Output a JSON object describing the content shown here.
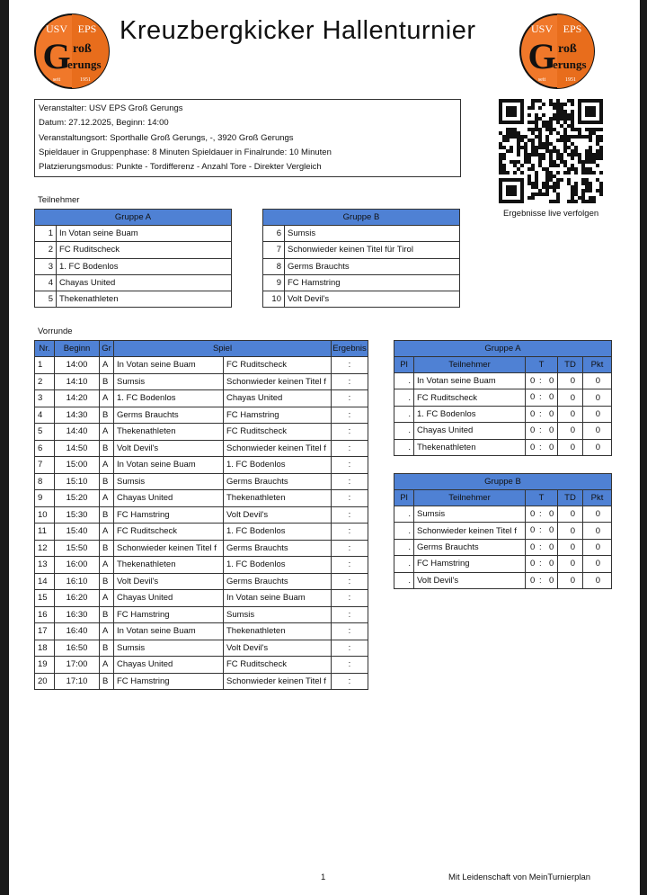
{
  "header": {
    "title": "Kreuzbergkicker Hallenturnier",
    "logo": {
      "top_left": "USV",
      "top_right": "EPS",
      "letter": "G",
      "line1": "roß",
      "line2": "erungs",
      "since": "seit",
      "year": "1951"
    }
  },
  "info": [
    "Veranstalter: USV EPS Groß Gerungs",
    "Datum: 27.12.2025, Beginn: 14:00",
    "Veranstaltungsort: Sporthalle Groß Gerungs, -, 3920 Groß Gerungs",
    "Spieldauer in Gruppenphase: 8 Minuten Spieldauer in Finalrunde: 10 Minuten",
    "Platzierungsmodus: Punkte - Tordifferenz - Anzahl Tore - Direkter Vergleich"
  ],
  "qr_caption": "Ergebnisse live verfolgen",
  "participants": {
    "label": "Teilnehmer",
    "groups": [
      {
        "name": "Gruppe A",
        "teams": [
          {
            "nr": 1,
            "name": "In Votan seine Buam"
          },
          {
            "nr": 2,
            "name": "FC Ruditscheck"
          },
          {
            "nr": 3,
            "name": "1. FC Bodenlos"
          },
          {
            "nr": 4,
            "name": "Chayas United"
          },
          {
            "nr": 5,
            "name": "Thekenathleten"
          }
        ]
      },
      {
        "name": "Gruppe B",
        "teams": [
          {
            "nr": 6,
            "name": "Sumsis"
          },
          {
            "nr": 7,
            "name": "Schonwieder keinen Titel für Tirol"
          },
          {
            "nr": 8,
            "name": "Germs Brauchts"
          },
          {
            "nr": 9,
            "name": "FC Hamstring"
          },
          {
            "nr": 10,
            "name": "Volt Devil's"
          }
        ]
      }
    ]
  },
  "schedule": {
    "label": "Vorrunde",
    "headers": [
      "Nr.",
      "Beginn",
      "Gr",
      "Spiel",
      "Ergebnis"
    ],
    "rows": [
      {
        "nr": 1,
        "time": "14:00",
        "group": "A",
        "home": "In Votan seine Buam",
        "away": "FC Ruditscheck",
        "result": ":"
      },
      {
        "nr": 2,
        "time": "14:10",
        "group": "B",
        "home": "Sumsis",
        "away": "Schonwieder keinen Titel f",
        "result": ":"
      },
      {
        "nr": 3,
        "time": "14:20",
        "group": "A",
        "home": "1. FC Bodenlos",
        "away": "Chayas United",
        "result": ":"
      },
      {
        "nr": 4,
        "time": "14:30",
        "group": "B",
        "home": "Germs Brauchts",
        "away": "FC Hamstring",
        "result": ":"
      },
      {
        "nr": 5,
        "time": "14:40",
        "group": "A",
        "home": "Thekenathleten",
        "away": "FC Ruditscheck",
        "result": ":"
      },
      {
        "nr": 6,
        "time": "14:50",
        "group": "B",
        "home": "Volt Devil's",
        "away": "Schonwieder keinen Titel f",
        "result": ":"
      },
      {
        "nr": 7,
        "time": "15:00",
        "group": "A",
        "home": "In Votan seine Buam",
        "away": "1. FC Bodenlos",
        "result": ":"
      },
      {
        "nr": 8,
        "time": "15:10",
        "group": "B",
        "home": "Sumsis",
        "away": "Germs Brauchts",
        "result": ":"
      },
      {
        "nr": 9,
        "time": "15:20",
        "group": "A",
        "home": "Chayas United",
        "away": "Thekenathleten",
        "result": ":"
      },
      {
        "nr": 10,
        "time": "15:30",
        "group": "B",
        "home": "FC Hamstring",
        "away": "Volt Devil's",
        "result": ":"
      },
      {
        "nr": 11,
        "time": "15:40",
        "group": "A",
        "home": "FC Ruditscheck",
        "away": "1. FC Bodenlos",
        "result": ":"
      },
      {
        "nr": 12,
        "time": "15:50",
        "group": "B",
        "home": "Schonwieder keinen Titel f",
        "away": "Germs Brauchts",
        "result": ":"
      },
      {
        "nr": 13,
        "time": "16:00",
        "group": "A",
        "home": "Thekenathleten",
        "away": "1. FC Bodenlos",
        "result": ":"
      },
      {
        "nr": 14,
        "time": "16:10",
        "group": "B",
        "home": "Volt Devil's",
        "away": "Germs Brauchts",
        "result": ":"
      },
      {
        "nr": 15,
        "time": "16:20",
        "group": "A",
        "home": "Chayas United",
        "away": "In Votan seine Buam",
        "result": ":"
      },
      {
        "nr": 16,
        "time": "16:30",
        "group": "B",
        "home": "FC Hamstring",
        "away": "Sumsis",
        "result": ":"
      },
      {
        "nr": 17,
        "time": "16:40",
        "group": "A",
        "home": "In Votan seine Buam",
        "away": "Thekenathleten",
        "result": ":"
      },
      {
        "nr": 18,
        "time": "16:50",
        "group": "B",
        "home": "Sumsis",
        "away": "Volt Devil's",
        "result": ":"
      },
      {
        "nr": 19,
        "time": "17:00",
        "group": "A",
        "home": "Chayas United",
        "away": "FC Ruditscheck",
        "result": ":"
      },
      {
        "nr": 20,
        "time": "17:10",
        "group": "B",
        "home": "FC Hamstring",
        "away": "Schonwieder keinen Titel f",
        "result": ":"
      }
    ]
  },
  "standings": [
    {
      "name": "Gruppe A",
      "headers": [
        "Pl",
        "Teilnehmer",
        "T",
        "TD",
        "Pkt"
      ],
      "rows": [
        {
          "pl": ".",
          "team": "In Votan seine Buam",
          "goals_for": 0,
          "sep": ":",
          "goals_against": 0,
          "td": 0,
          "pkt": 0
        },
        {
          "pl": ".",
          "team": "FC Ruditscheck",
          "goals_for": 0,
          "sep": ":",
          "goals_against": 0,
          "td": 0,
          "pkt": 0
        },
        {
          "pl": ".",
          "team": "1. FC Bodenlos",
          "goals_for": 0,
          "sep": ":",
          "goals_against": 0,
          "td": 0,
          "pkt": 0
        },
        {
          "pl": ".",
          "team": "Chayas United",
          "goals_for": 0,
          "sep": ":",
          "goals_against": 0,
          "td": 0,
          "pkt": 0
        },
        {
          "pl": ".",
          "team": "Thekenathleten",
          "goals_for": 0,
          "sep": ":",
          "goals_against": 0,
          "td": 0,
          "pkt": 0
        }
      ]
    },
    {
      "name": "Gruppe B",
      "headers": [
        "Pl",
        "Teilnehmer",
        "T",
        "TD",
        "Pkt"
      ],
      "rows": [
        {
          "pl": ".",
          "team": "Sumsis",
          "goals_for": 0,
          "sep": ":",
          "goals_against": 0,
          "td": 0,
          "pkt": 0
        },
        {
          "pl": ".",
          "team": "Schonwieder keinen Titel f",
          "goals_for": 0,
          "sep": ":",
          "goals_against": 0,
          "td": 0,
          "pkt": 0
        },
        {
          "pl": ".",
          "team": "Germs Brauchts",
          "goals_for": 0,
          "sep": ":",
          "goals_against": 0,
          "td": 0,
          "pkt": 0
        },
        {
          "pl": ".",
          "team": "FC Hamstring",
          "goals_for": 0,
          "sep": ":",
          "goals_against": 0,
          "td": 0,
          "pkt": 0
        },
        {
          "pl": ".",
          "team": "Volt Devil's",
          "goals_for": 0,
          "sep": ":",
          "goals_against": 0,
          "td": 0,
          "pkt": 0
        }
      ]
    }
  ],
  "footer": {
    "page": "1",
    "credit": "Mit Leidenschaft von MeinTurnierplan"
  }
}
